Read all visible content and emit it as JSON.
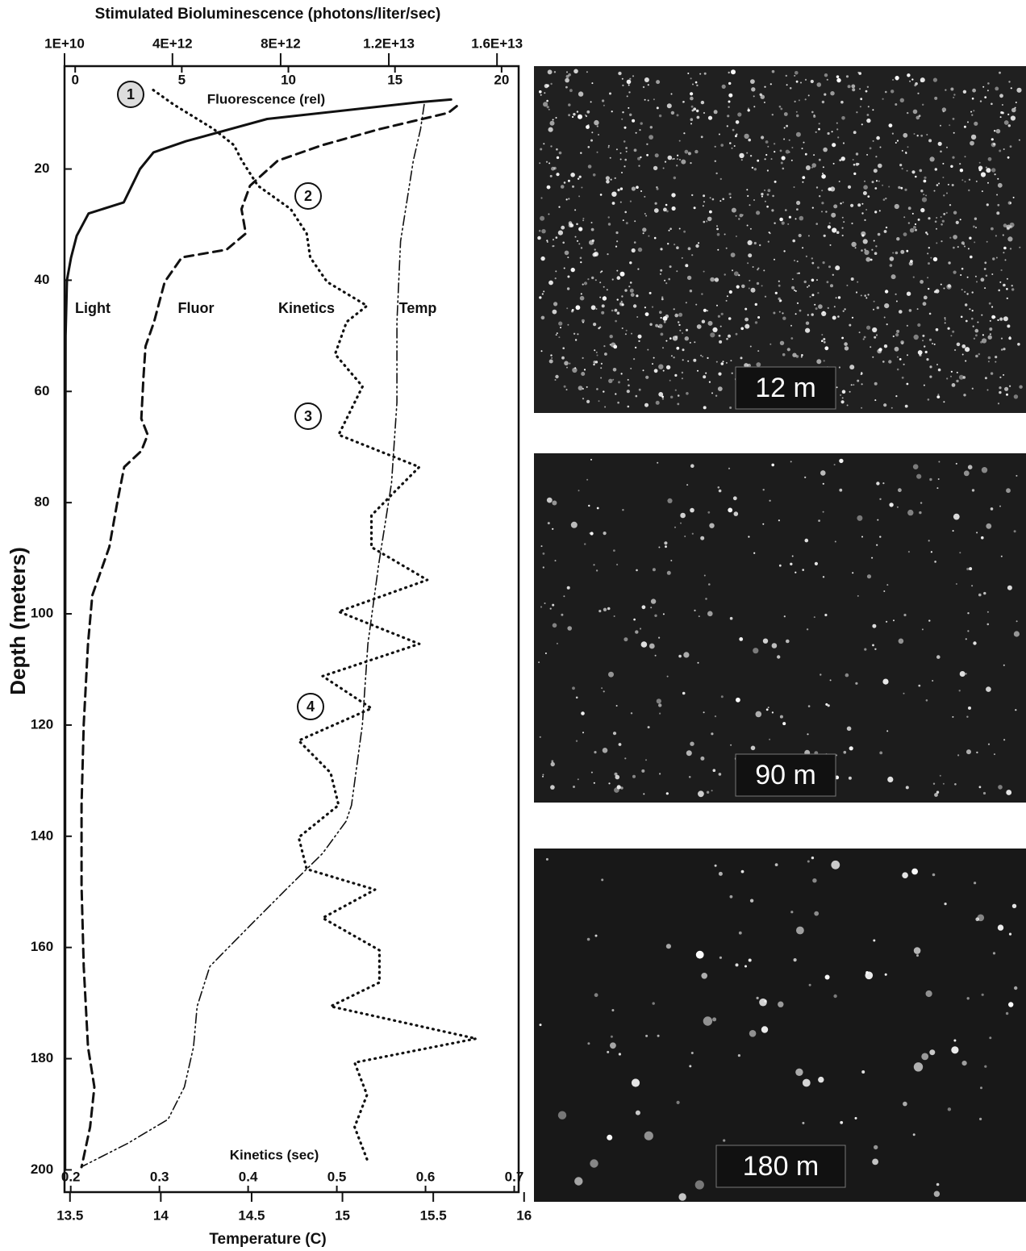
{
  "chart_data": {
    "type": "line",
    "title": "Stimulated Bioluminescence (photons/liter/sec)",
    "ylabel": "Depth (meters)",
    "ylim": [
      1.5,
      204
    ],
    "yticks": [
      20,
      40,
      60,
      80,
      100,
      120,
      140,
      160,
      180,
      200
    ],
    "x_axes": [
      {
        "label": "Stimulated Bioluminescence (photons/liter/sec)",
        "side": "top-outside",
        "lim": [
          10000000000,
          16800000000000
        ],
        "ticks": [
          {
            "value": 10000000000,
            "label": "1E+10"
          },
          {
            "value": 4000000000000,
            "label": "4E+12"
          },
          {
            "value": 8000000000000,
            "label": "8E+12"
          },
          {
            "value": 12000000000000,
            "label": "1.2E+13"
          },
          {
            "value": 16000000000000,
            "label": "1.6E+13"
          }
        ]
      },
      {
        "label": "Fluorescence (rel)",
        "side": "top-inside",
        "lim": [
          -0.5,
          20.8
        ],
        "ticks": [
          0,
          5,
          10,
          15,
          20
        ]
      },
      {
        "label": "Kinetics (sec)",
        "side": "bottom-inside",
        "lim": [
          0.193,
          0.705
        ],
        "ticks": [
          0.2,
          0.3,
          0.4,
          0.5,
          0.6,
          0.7
        ]
      },
      {
        "label": "Temperature (C)",
        "side": "bottom-outside",
        "lim": [
          13.47,
          15.97
        ],
        "ticks": [
          13.5,
          14,
          14.5,
          15,
          15.5,
          16
        ]
      }
    ],
    "series": [
      {
        "name": "Light",
        "axis": 0,
        "color": "#111111",
        "style": "solid",
        "depth": [
          7.5,
          8,
          11,
          15,
          17,
          20,
          23,
          26,
          28,
          32,
          36,
          40,
          50,
          80,
          120,
          160,
          200
        ],
        "values": [
          14300000000000,
          13100000000000,
          7500000000000,
          4500000000000,
          3300000000000,
          2800000000000,
          2500000000000,
          2200000000000,
          900000000000,
          460000000000,
          250000000000,
          100000000000,
          50000000000,
          40000000000,
          30000000000,
          30000000000,
          30000000000
        ]
      },
      {
        "name": "Fluor",
        "axis": 1,
        "color": "#111111",
        "style": "dashed",
        "depth": [
          8.7,
          9.9,
          12.8,
          15.7,
          18.5,
          23,
          27.2,
          31.6,
          34.5,
          35.9,
          40.3,
          47.5,
          51.9,
          57.6,
          64.9,
          67.8,
          70.7,
          73.6,
          79.4,
          88,
          96.7,
          105.4,
          119.9,
          134.4,
          148.9,
          163.4,
          177.9,
          185.1,
          192.3,
          199.5
        ],
        "values": [
          17.9,
          17.5,
          14.3,
          11.6,
          9.5,
          8.2,
          7.8,
          8.0,
          7.1,
          5.0,
          4.2,
          3.7,
          3.3,
          3.2,
          3.1,
          3.4,
          3.1,
          2.3,
          2.0,
          1.6,
          0.8,
          0.6,
          0.4,
          0.3,
          0.3,
          0.4,
          0.6,
          0.9,
          0.7,
          0.3
        ]
      },
      {
        "name": "Kinetics",
        "axis": 2,
        "color": "#111111",
        "style": "dotted",
        "depth": [
          5.8,
          8.4,
          12.8,
          15.7,
          18.5,
          23,
          27.2,
          31.6,
          35.9,
          40.3,
          44.6,
          47.5,
          53.3,
          59.1,
          64.9,
          67.8,
          73.6,
          77.9,
          82.3,
          88,
          93.9,
          99.6,
          105.4,
          111.2,
          117,
          122.8,
          128.6,
          134.4,
          140.2,
          145.9,
          149.6,
          154.7,
          160.5,
          166.3,
          170.6,
          176.4,
          180.7,
          186.5,
          192.3,
          198.1
        ],
        "values": [
          0.293,
          0.316,
          0.361,
          0.384,
          0.393,
          0.411,
          0.448,
          0.466,
          0.47,
          0.489,
          0.534,
          0.511,
          0.498,
          0.529,
          0.511,
          0.502,
          0.593,
          0.566,
          0.539,
          0.539,
          0.602,
          0.502,
          0.593,
          0.484,
          0.539,
          0.457,
          0.493,
          0.502,
          0.457,
          0.466,
          0.543,
          0.484,
          0.548,
          0.548,
          0.493,
          0.657,
          0.52,
          0.534,
          0.52,
          0.534
        ]
      },
      {
        "name": "Temp",
        "axis": 3,
        "color": "#111111",
        "style": "dashdotdot",
        "depth": [
          8.4,
          12.8,
          18.5,
          33,
          47.5,
          62,
          76.5,
          91,
          105.4,
          119.9,
          134.4,
          137.3,
          143.1,
          148.9,
          156.1,
          163.4,
          170.6,
          177.9,
          185.1,
          190.9,
          195.2,
          199.5
        ],
        "values": [
          15.45,
          15.43,
          15.39,
          15.32,
          15.3,
          15.3,
          15.27,
          15.2,
          15.14,
          15.11,
          15.05,
          15.02,
          14.89,
          14.71,
          14.49,
          14.27,
          14.2,
          14.18,
          14.13,
          14.04,
          13.82,
          13.56
        ]
      }
    ],
    "annotations": [
      "1",
      "2",
      "3",
      "4"
    ]
  },
  "photos": [
    {
      "label": "12 m"
    },
    {
      "label": "90 m"
    },
    {
      "label": "180 m"
    }
  ]
}
